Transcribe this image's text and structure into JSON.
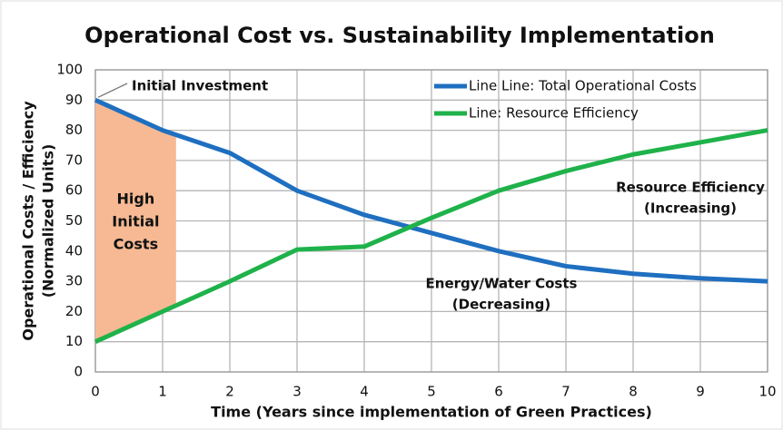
{
  "chart_data": {
    "type": "line",
    "title": "Operational Cost vs. Sustainability Implementation",
    "xlabel": "Time (Years since implementation of Green Practices)",
    "ylabel": [
      "Operational Costs / Efficiency",
      "(Normalized Units)"
    ],
    "x": [
      0,
      1,
      2,
      3,
      4,
      5,
      6,
      7,
      8,
      9,
      10
    ],
    "series": [
      {
        "name": "Line Line: Total Operational Costs",
        "color": "#1f6fc0",
        "values": [
          90,
          80,
          72.5,
          60,
          52,
          46,
          40,
          35,
          32.5,
          31,
          30
        ]
      },
      {
        "name": "Line: Resource Efficiency",
        "color": "#1fb24a",
        "values": [
          10,
          20,
          30,
          40.5,
          41.5,
          51,
          60,
          66.5,
          72,
          76,
          80
        ]
      }
    ],
    "xlim": [
      0,
      10
    ],
    "xticks": [
      0,
      1,
      2,
      3,
      4,
      5,
      6,
      7,
      8,
      9,
      10
    ],
    "ylim": [
      0,
      100
    ],
    "yticks": [
      0,
      10,
      20,
      30,
      40,
      50,
      60,
      70,
      80,
      90,
      100
    ],
    "grid": true,
    "legend": "upper right",
    "shaded_region": {
      "x": [
        0,
        1.2
      ],
      "color": "#f6b993",
      "label": [
        "High",
        "Initial",
        "Costs"
      ]
    },
    "annotations": [
      {
        "text": [
          "Initial Investment"
        ]
      },
      {
        "text": [
          "Resource Efficiency",
          "(Increasing)"
        ]
      },
      {
        "text": [
          "Energy/Water Costs",
          "(Decreasing)"
        ]
      }
    ]
  }
}
